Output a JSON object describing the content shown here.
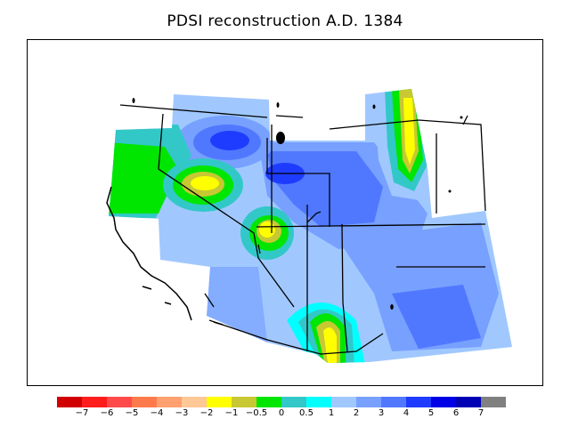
{
  "title": "PDSI reconstruction A.D. 1384",
  "legend": {
    "colors": [
      "#d10000",
      "#ff1c1c",
      "#ff4a4a",
      "#ff7a4a",
      "#ffa070",
      "#ffc896",
      "#ffff00",
      "#c8c832",
      "#00e600",
      "#32c8c8",
      "#00ffff",
      "#a0c8ff",
      "#78a0ff",
      "#5078ff",
      "#1e3cff",
      "#0000e6",
      "#0000b4",
      "#808080"
    ],
    "labels": [
      "−7",
      "−6",
      "−5",
      "−4",
      "−3",
      "−2",
      "−1",
      "−0.5",
      "0",
      "0.5",
      "1",
      "2",
      "3",
      "4",
      "5",
      "6",
      "7"
    ]
  },
  "palette": {
    "deep": "#1e3cff",
    "mid": "#5078ff",
    "light": "#78a0ff",
    "pale": "#a0c8ff",
    "cyan": "#00ffff",
    "teal": "#32c8c8",
    "green": "#00e600",
    "olive": "#c8c832",
    "yellow": "#ffff00"
  }
}
